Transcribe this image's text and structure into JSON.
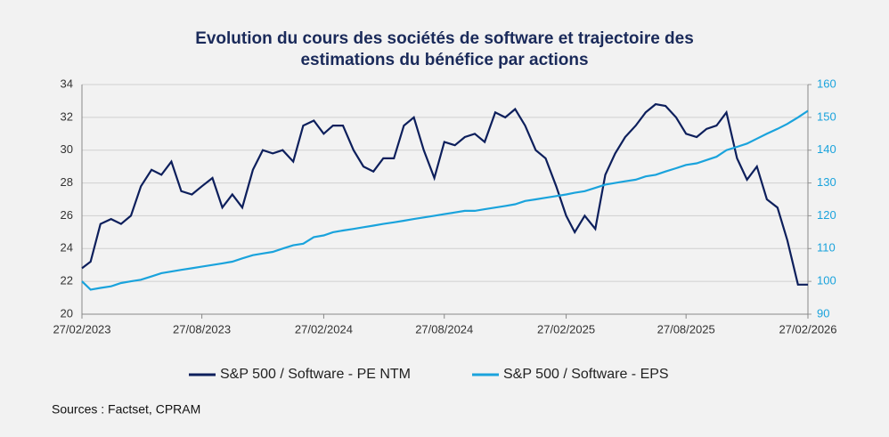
{
  "chart_data": {
    "type": "line",
    "title": [
      "Evolution du cours des sociétés de software et trajectoire des",
      "estimations du bénéfice par actions"
    ],
    "x": [
      "27/02/2023",
      "12/03/2023",
      "27/03/2023",
      "12/04/2023",
      "27/04/2023",
      "12/05/2023",
      "27/05/2023",
      "12/06/2023",
      "27/06/2023",
      "12/07/2023",
      "27/07/2023",
      "12/08/2023",
      "27/08/2023",
      "12/09/2023",
      "27/09/2023",
      "12/10/2023",
      "27/10/2023",
      "12/11/2023",
      "27/11/2023",
      "12/12/2023",
      "27/12/2023",
      "12/01/2024",
      "27/01/2024",
      "12/02/2024",
      "27/02/2024",
      "12/03/2024",
      "27/03/2024",
      "12/04/2024",
      "27/04/2024",
      "12/05/2024",
      "27/05/2024",
      "12/06/2024",
      "27/06/2024",
      "12/07/2024",
      "27/07/2024",
      "12/08/2024",
      "27/08/2024",
      "12/09/2024",
      "27/09/2024",
      "12/10/2024",
      "27/10/2024",
      "12/11/2024",
      "27/11/2024",
      "12/12/2024",
      "27/12/2024",
      "12/01/2025",
      "27/01/2025",
      "12/02/2025",
      "27/02/2025",
      "12/03/2025",
      "27/03/2025",
      "12/04/2025",
      "27/04/2025",
      "12/05/2025",
      "27/05/2025",
      "12/06/2025",
      "27/06/2025",
      "12/07/2025",
      "27/07/2025",
      "12/08/2025",
      "27/08/2025",
      "12/09/2025",
      "27/09/2025",
      "12/10/2025",
      "27/10/2025",
      "12/11/2025",
      "27/11/2025",
      "12/12/2025",
      "27/12/2025",
      "12/01/2026",
      "27/01/2026",
      "12/02/2026",
      "27/02/2026"
    ],
    "series": [
      {
        "name": "S&P 500 / Software - PE NTM",
        "color": "#0d1f5c",
        "values": [
          22.8,
          23.2,
          25.5,
          25.8,
          25.5,
          26.0,
          27.8,
          28.8,
          28.5,
          29.3,
          27.5,
          27.3,
          27.8,
          28.3,
          26.5,
          27.3,
          26.5,
          28.8,
          30.0,
          29.8,
          30.0,
          29.3,
          31.5,
          31.8,
          31.0,
          31.5,
          31.5,
          30.0,
          29.0,
          28.7,
          29.5,
          29.5,
          31.5,
          32.0,
          30.0,
          28.3,
          30.5,
          30.3,
          30.8,
          31.0,
          30.5,
          32.3,
          32.0,
          32.5,
          31.5,
          30.0,
          29.5,
          27.8,
          26.0,
          25.0,
          26.0,
          25.2,
          28.5,
          29.8,
          30.8,
          31.5,
          32.3,
          32.8,
          32.7,
          32.0,
          31.0,
          30.8,
          31.3,
          31.5,
          32.3,
          29.5,
          28.2,
          29.0,
          27.0,
          26.5,
          24.5,
          21.8,
          21.8
        ]
      },
      {
        "name": "S&P 500 / Software -  EPS",
        "color": "#1aa3dc",
        "axis": "y2",
        "values": [
          100,
          97.5,
          98,
          98.5,
          99.5,
          100,
          100.5,
          101.5,
          102.5,
          103,
          103.5,
          104,
          104.5,
          105,
          105.5,
          106,
          107,
          108,
          108.5,
          109,
          110,
          111,
          111.5,
          113.5,
          114,
          115,
          115.5,
          116,
          116.5,
          117,
          117.5,
          118,
          118.5,
          119,
          119.5,
          120,
          120.5,
          121,
          121.5,
          121.5,
          122,
          122.5,
          123,
          123.5,
          124.5,
          125,
          125.5,
          126,
          126.5,
          127,
          127.5,
          128.5,
          129.5,
          130,
          130.5,
          131,
          132,
          132.5,
          133.5,
          134.5,
          135.5,
          136,
          137,
          138,
          140,
          141,
          142,
          143.5,
          145,
          146.5,
          148,
          150,
          152
        ]
      }
    ],
    "xlim": [
      "27/02/2023",
      "27/02/2026"
    ],
    "xticks": [
      "27/02/2023",
      "27/08/2023",
      "27/02/2024",
      "27/08/2024",
      "27/02/2025",
      "27/08/2025",
      "27/02/2026"
    ],
    "ylim": [
      20,
      34
    ],
    "yticks": [
      20,
      22,
      24,
      26,
      28,
      30,
      32,
      34
    ],
    "y2lim": [
      90,
      160
    ],
    "y2ticks": [
      90,
      100,
      110,
      120,
      130,
      140,
      150,
      160
    ],
    "y2_color": "#1aa3dc",
    "grid": true,
    "legend": "bottom",
    "source": "Sources : Factset, CPRAM"
  }
}
